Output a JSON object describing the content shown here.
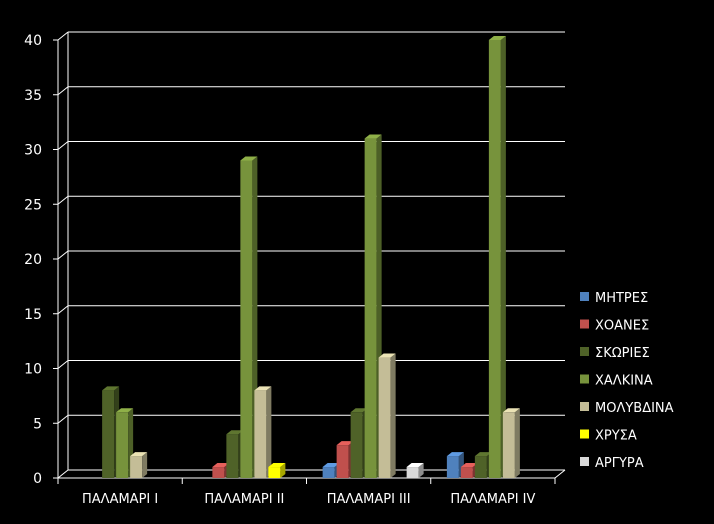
{
  "chart_data": {
    "type": "bar",
    "title": "",
    "xlabel": "",
    "ylabel": "",
    "ylim": [
      0,
      40
    ],
    "yticks": [
      0,
      5,
      10,
      15,
      20,
      25,
      30,
      35,
      40
    ],
    "grid": true,
    "legend_position": "right",
    "categories": [
      "ΠΑΛΑΜΑΡΙ Ι",
      "ΠΑΛΑΜΑΡΙ ΙΙ",
      "ΠΑΛΑΜΑΡΙ ΙΙΙ",
      "ΠΑΛΑΜΑΡΙ IV"
    ],
    "series": [
      {
        "name": "ΜΗΤΡΕΣ",
        "color": "#4f81bd",
        "values": [
          0,
          0,
          1,
          2
        ]
      },
      {
        "name": "ΧΟΑΝΕΣ",
        "color": "#c0504d",
        "values": [
          0,
          1,
          3,
          1
        ]
      },
      {
        "name": "ΣΚΩΡΙΕΣ",
        "color": "#4f6228",
        "values": [
          8,
          4,
          6,
          2
        ]
      },
      {
        "name": "ΧΑΛΚΙΝΑ",
        "color": "#77933c",
        "values": [
          6,
          29,
          31,
          40
        ]
      },
      {
        "name": "ΜΟΛΥΒΔΙΝΑ",
        "color": "#c4bd97",
        "values": [
          2,
          8,
          11,
          6
        ]
      },
      {
        "name": "ΧΡΥΣΑ",
        "color": "#ffff00",
        "values": [
          0,
          1,
          0,
          0
        ]
      },
      {
        "name": "ΑΡΓΥΡΑ",
        "color": "#d9d9d9",
        "values": [
          0,
          0,
          1,
          0
        ]
      }
    ]
  }
}
